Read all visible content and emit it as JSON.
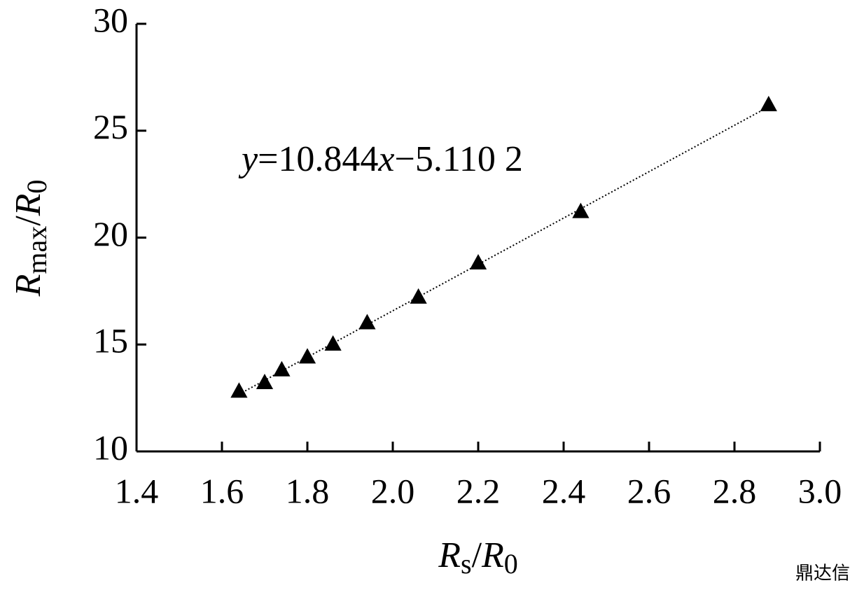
{
  "chart_data": {
    "type": "scatter",
    "x_label": [
      "R",
      "s",
      "/",
      "R",
      "0"
    ],
    "y_label": [
      "R",
      "max",
      "/",
      "R",
      "0"
    ],
    "annotation": [
      "y",
      "=10.844",
      "x",
      "−5.110 2"
    ],
    "watermark": "鼎达信",
    "series": [
      {
        "color": "#000000",
        "x": [
          1.64,
          1.7,
          1.74,
          1.8,
          1.86,
          1.94,
          2.06,
          2.2,
          2.44,
          2.88
        ],
        "values": [
          12.8,
          13.2,
          13.8,
          14.4,
          15.0,
          16.0,
          17.2,
          18.8,
          21.2,
          26.2
        ]
      }
    ],
    "trendline": {
      "slope": 10.844,
      "intercept": -5.1102
    },
    "xlim": [
      1.4,
      3.0
    ],
    "xticks": [
      1.4,
      1.6,
      1.8,
      {
        "value": 2,
        "label": "2.0"
      },
      2.2,
      2.4,
      2.6,
      2.8,
      {
        "value": 3,
        "label": "3.0"
      }
    ],
    "ylim": [
      10,
      30
    ],
    "yticks": [
      10,
      15,
      20,
      25,
      30
    ]
  }
}
